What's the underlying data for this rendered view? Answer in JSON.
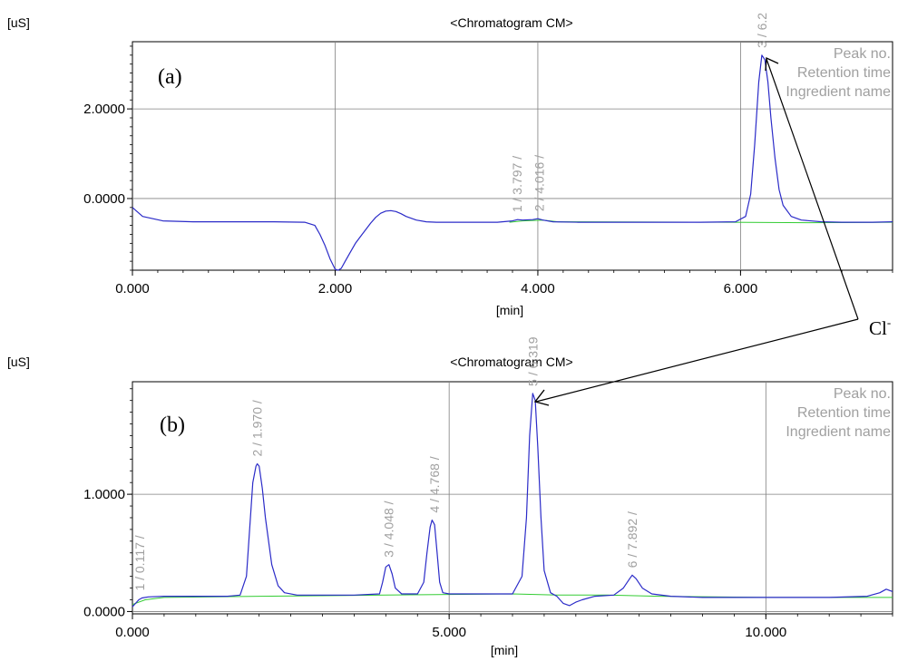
{
  "chart_data": [
    {
      "type": "line",
      "panel_label": "(a)",
      "title": "<Chromatogram CM>",
      "ylabel": "[uS]",
      "xlabel": "[min]",
      "xlim": [
        0,
        7.5
      ],
      "ylim": [
        -1.6,
        3.5
      ],
      "x_ticks": [
        {
          "value": 0,
          "label": "0.000"
        },
        {
          "value": 2,
          "label": "2.000"
        },
        {
          "value": 4,
          "label": "4.000"
        },
        {
          "value": 6,
          "label": "6.000"
        }
      ],
      "y_ticks": [
        {
          "value": 0,
          "label": "0.0000"
        },
        {
          "value": 2,
          "label": "2.0000"
        }
      ],
      "grid": true,
      "legend_lines": [
        "Peak no.",
        "Retention time",
        "Ingredient name"
      ],
      "legend_position": "top-right",
      "colors": {
        "signal": "#2b2bc8",
        "baseline": "#33cc33",
        "grid": "#808080",
        "annotation": "#a0a0a0"
      },
      "series": [
        {
          "name": "signal",
          "x": [
            0.0,
            0.1,
            0.3,
            0.6,
            1.0,
            1.4,
            1.7,
            1.8,
            1.85,
            1.9,
            1.95,
            2.0,
            2.03,
            2.06,
            2.1,
            2.15,
            2.2,
            2.25,
            2.3,
            2.35,
            2.4,
            2.45,
            2.5,
            2.55,
            2.6,
            2.65,
            2.7,
            2.8,
            2.9,
            3.0,
            3.3,
            3.6,
            3.75,
            3.8,
            3.85,
            3.95,
            4.0,
            4.05,
            4.15,
            4.4,
            4.8,
            5.2,
            5.6,
            5.95,
            6.05,
            6.1,
            6.14,
            6.18,
            6.21,
            6.24,
            6.27,
            6.3,
            6.34,
            6.38,
            6.42,
            6.5,
            6.6,
            6.8,
            7.0,
            7.3,
            7.5
          ],
          "y": [
            -0.2,
            -0.4,
            -0.5,
            -0.52,
            -0.52,
            -0.52,
            -0.53,
            -0.6,
            -0.8,
            -1.05,
            -1.35,
            -1.58,
            -1.6,
            -1.56,
            -1.4,
            -1.2,
            -1.0,
            -0.85,
            -0.7,
            -0.55,
            -0.42,
            -0.33,
            -0.28,
            -0.27,
            -0.29,
            -0.34,
            -0.4,
            -0.48,
            -0.52,
            -0.53,
            -0.53,
            -0.53,
            -0.5,
            -0.47,
            -0.48,
            -0.47,
            -0.45,
            -0.48,
            -0.52,
            -0.53,
            -0.53,
            -0.53,
            -0.53,
            -0.52,
            -0.4,
            0.1,
            1.2,
            2.6,
            3.2,
            3.1,
            2.6,
            1.8,
            0.9,
            0.2,
            -0.15,
            -0.4,
            -0.48,
            -0.52,
            -0.53,
            -0.53,
            -0.52
          ]
        },
        {
          "name": "baseline",
          "x": [
            3.72,
            3.85,
            4.05,
            4.2,
            5.9,
            6.7,
            7.5
          ],
          "y": [
            -0.53,
            -0.5,
            -0.48,
            -0.52,
            -0.53,
            -0.54,
            -0.53
          ]
        }
      ],
      "peak_labels": [
        {
          "x": 3.797,
          "y": -0.47,
          "text": "1 / 3.797 /"
        },
        {
          "x": 4.016,
          "y": -0.45,
          "text": "2 / 4.016 /"
        },
        {
          "x": 6.21,
          "y": 3.2,
          "text": "3 / 6.2"
        }
      ]
    },
    {
      "type": "line",
      "panel_label": "(b)",
      "title": "<Chromatogram CM>",
      "ylabel": "[uS]",
      "xlabel": "[min]",
      "xlim": [
        0,
        12
      ],
      "ylim": [
        -0.02,
        1.96
      ],
      "x_ticks": [
        {
          "value": 0,
          "label": "0.000"
        },
        {
          "value": 5,
          "label": "5.000"
        },
        {
          "value": 10,
          "label": "10.000"
        }
      ],
      "y_ticks": [
        {
          "value": 0,
          "label": "0.0000"
        },
        {
          "value": 1,
          "label": "1.0000"
        }
      ],
      "grid": true,
      "legend_lines": [
        "Peak no.",
        "Retention time",
        "Ingredient name"
      ],
      "legend_position": "top-right",
      "colors": {
        "signal": "#2b2bc8",
        "baseline": "#33cc33",
        "grid": "#808080",
        "annotation": "#a0a0a0"
      },
      "series": [
        {
          "name": "signal",
          "x": [
            0.0,
            0.05,
            0.1,
            0.15,
            0.25,
            0.5,
            1.0,
            1.5,
            1.7,
            1.8,
            1.85,
            1.9,
            1.95,
            1.97,
            2.0,
            2.05,
            2.1,
            2.2,
            2.3,
            2.4,
            2.6,
            3.0,
            3.5,
            3.9,
            3.95,
            4.0,
            4.05,
            4.1,
            4.15,
            4.25,
            4.5,
            4.6,
            4.65,
            4.7,
            4.73,
            4.77,
            4.81,
            4.85,
            4.9,
            5.0,
            5.5,
            6.0,
            6.15,
            6.22,
            6.27,
            6.32,
            6.36,
            6.4,
            6.45,
            6.5,
            6.6,
            6.7,
            6.8,
            6.9,
            7.0,
            7.1,
            7.3,
            7.6,
            7.75,
            7.85,
            7.89,
            7.95,
            8.05,
            8.2,
            8.5,
            9.0,
            10.0,
            11.0,
            11.6,
            11.8,
            11.9,
            12.0
          ],
          "y": [
            0.04,
            0.07,
            0.1,
            0.115,
            0.125,
            0.13,
            0.13,
            0.13,
            0.14,
            0.3,
            0.7,
            1.1,
            1.24,
            1.26,
            1.24,
            1.05,
            0.8,
            0.4,
            0.22,
            0.16,
            0.14,
            0.14,
            0.14,
            0.15,
            0.25,
            0.38,
            0.4,
            0.32,
            0.2,
            0.15,
            0.15,
            0.25,
            0.5,
            0.72,
            0.78,
            0.74,
            0.5,
            0.25,
            0.16,
            0.15,
            0.15,
            0.15,
            0.3,
            0.8,
            1.5,
            1.86,
            1.8,
            1.4,
            0.8,
            0.35,
            0.16,
            0.13,
            0.07,
            0.05,
            0.08,
            0.1,
            0.13,
            0.14,
            0.2,
            0.28,
            0.31,
            0.28,
            0.2,
            0.15,
            0.13,
            0.12,
            0.12,
            0.12,
            0.13,
            0.16,
            0.19,
            0.17
          ]
        },
        {
          "name": "baseline",
          "x": [
            0.0,
            0.2,
            0.5,
            2.0,
            4.0,
            6.0,
            6.7,
            7.5,
            8.3,
            10.0,
            12.0
          ],
          "y": [
            0.06,
            0.1,
            0.12,
            0.13,
            0.14,
            0.15,
            0.14,
            0.14,
            0.13,
            0.12,
            0.12
          ]
        }
      ],
      "peak_labels": [
        {
          "x": 0.117,
          "y": 0.115,
          "text": "1 / 0.117 /"
        },
        {
          "x": 1.97,
          "y": 1.26,
          "text": "2 / 1.970 /"
        },
        {
          "x": 4.048,
          "y": 0.4,
          "text": "3 / 4.048 /"
        },
        {
          "x": 4.768,
          "y": 0.78,
          "text": "4 / 4.768 /"
        },
        {
          "x": 6.319,
          "y": 1.86,
          "text": "5 / 6.319"
        },
        {
          "x": 7.892,
          "y": 0.31,
          "text": "6 / 7.892 /"
        }
      ]
    }
  ],
  "callout": {
    "label": "Cl",
    "superscript": "-"
  }
}
